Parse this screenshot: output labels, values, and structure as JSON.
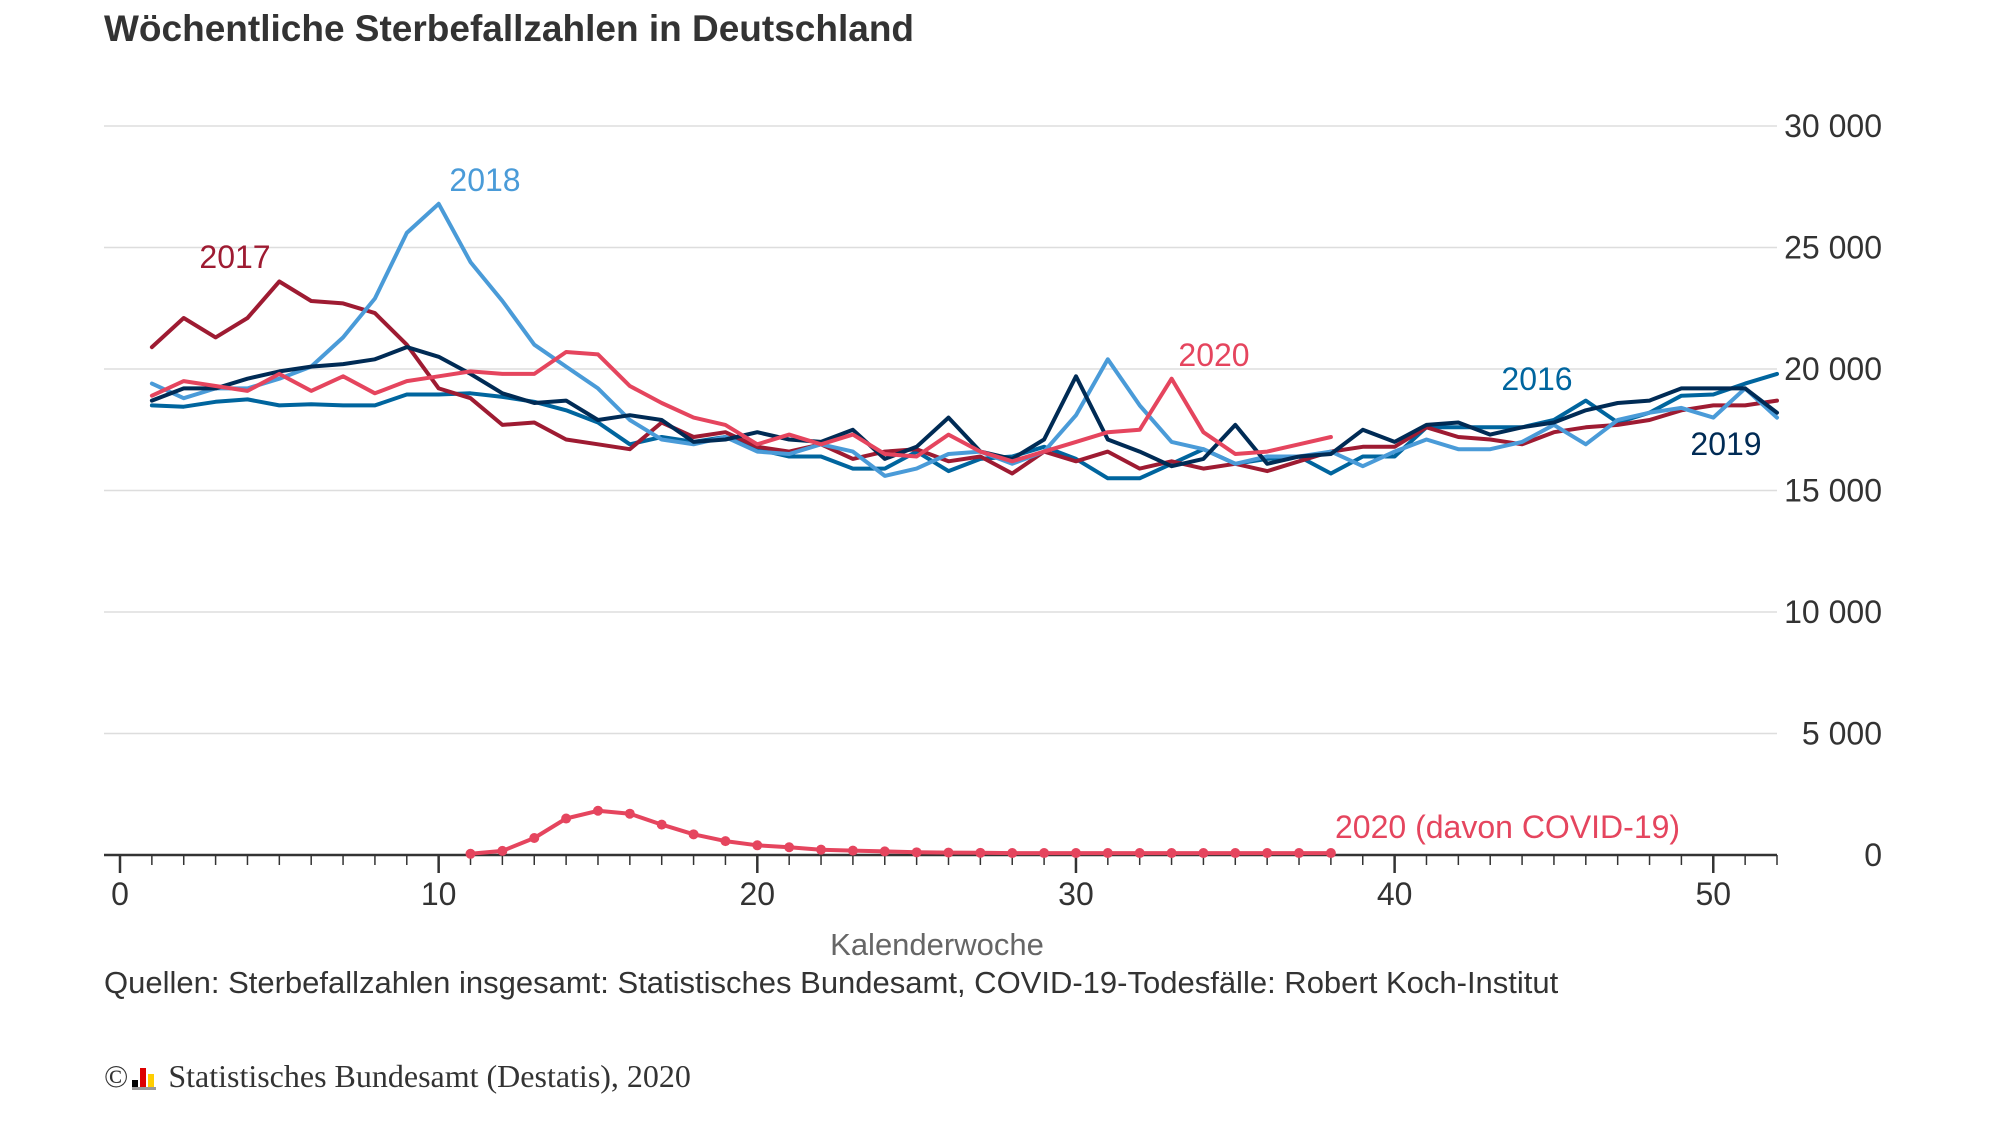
{
  "header": {
    "title": "Wöchentliche Sterbefallzahlen in Deutschland"
  },
  "footer": {
    "source": "Quellen: Sterbefallzahlen insgesamt: Statistisches Bundesamt, COVID-19-Todesfälle: Robert Koch-Institut",
    "copyright_symbol": "©",
    "copyright_text": "Statistisches Bundesamt (Destatis), 2020"
  },
  "chart_data": {
    "type": "line",
    "title": "Wöchentliche Sterbefallzahlen in Deutschland",
    "xlabel": "Kalenderwoche",
    "ylabel": "",
    "xlim": [
      0,
      52
    ],
    "ylim": [
      0,
      30000
    ],
    "x_ticks": [
      0,
      10,
      20,
      30,
      40,
      50
    ],
    "x_tick_labels": [
      "0",
      "10",
      "20",
      "30",
      "40",
      "50"
    ],
    "y_ticks": [
      0,
      5000,
      10000,
      15000,
      20000,
      25000,
      30000
    ],
    "y_tick_labels": [
      "0",
      "5 000",
      "10 000",
      "15 000",
      "20 000",
      "25 000",
      "30 000"
    ],
    "y_axis_side": "right",
    "grid": "horizontal",
    "series": [
      {
        "name": "2016",
        "color": "#00659E",
        "x": [
          1,
          2,
          3,
          4,
          5,
          6,
          7,
          8,
          9,
          10,
          11,
          12,
          13,
          14,
          15,
          16,
          17,
          18,
          19,
          20,
          21,
          22,
          23,
          24,
          25,
          26,
          27,
          28,
          29,
          30,
          31,
          32,
          33,
          34,
          35,
          36,
          37,
          38,
          39,
          40,
          41,
          42,
          43,
          44,
          45,
          46,
          47,
          48,
          49,
          50,
          51,
          52
        ],
        "values": [
          18500,
          18450,
          18650,
          18750,
          18500,
          18550,
          18500,
          18500,
          18950,
          18950,
          19000,
          18850,
          18650,
          18300,
          17800,
          16900,
          17200,
          17000,
          17200,
          16700,
          16400,
          16400,
          15900,
          15900,
          16600,
          15800,
          16300,
          16400,
          16800,
          16300,
          15500,
          15500,
          16100,
          16700,
          16100,
          16300,
          16400,
          15700,
          16400,
          16400,
          17600,
          17600,
          17600,
          17600,
          17900,
          18700,
          17800,
          18200,
          18900,
          18950,
          19400,
          19800
        ]
      },
      {
        "name": "2017",
        "color": "#9E1B32",
        "x": [
          1,
          2,
          3,
          4,
          5,
          6,
          7,
          8,
          9,
          10,
          11,
          12,
          13,
          14,
          15,
          16,
          17,
          18,
          19,
          20,
          21,
          22,
          23,
          24,
          25,
          26,
          27,
          28,
          29,
          30,
          31,
          32,
          33,
          34,
          35,
          36,
          37,
          38,
          39,
          40,
          41,
          42,
          43,
          44,
          45,
          46,
          47,
          48,
          49,
          50,
          51,
          52
        ],
        "values": [
          20900,
          22100,
          21300,
          22100,
          23600,
          22800,
          22700,
          22300,
          21000,
          19200,
          18800,
          17700,
          17800,
          17100,
          16900,
          16700,
          17800,
          17200,
          17400,
          16800,
          16600,
          16900,
          16300,
          16600,
          16700,
          16200,
          16400,
          15700,
          16600,
          16200,
          16600,
          15900,
          16200,
          15900,
          16100,
          15800,
          16200,
          16600,
          16800,
          16800,
          17600,
          17200,
          17100,
          16900,
          17400,
          17600,
          17700,
          17900,
          18300,
          18500,
          18500,
          18700
        ]
      },
      {
        "name": "2018",
        "color": "#4A9BD8",
        "x": [
          1,
          2,
          3,
          4,
          5,
          6,
          7,
          8,
          9,
          10,
          11,
          12,
          13,
          14,
          15,
          16,
          17,
          18,
          19,
          20,
          21,
          22,
          23,
          24,
          25,
          26,
          27,
          28,
          29,
          30,
          31,
          32,
          33,
          34,
          35,
          36,
          37,
          38,
          39,
          40,
          41,
          42,
          43,
          44,
          45,
          46,
          47,
          48,
          49,
          50,
          51,
          52
        ],
        "values": [
          19400,
          18800,
          19200,
          19200,
          19600,
          20100,
          21300,
          22900,
          25600,
          26800,
          24400,
          22800,
          21000,
          20100,
          19200,
          17900,
          17100,
          16900,
          17200,
          16600,
          16500,
          16900,
          16600,
          15600,
          15900,
          16500,
          16600,
          16100,
          16600,
          18100,
          20400,
          18500,
          17000,
          16700,
          16100,
          16400,
          16400,
          16600,
          16000,
          16600,
          17100,
          16700,
          16700,
          17000,
          17700,
          16900,
          17900,
          18200,
          18400,
          18000,
          19200,
          18000
        ]
      },
      {
        "name": "2019",
        "color": "#002B55",
        "x": [
          1,
          2,
          3,
          4,
          5,
          6,
          7,
          8,
          9,
          10,
          11,
          12,
          13,
          14,
          15,
          16,
          17,
          18,
          19,
          20,
          21,
          22,
          23,
          24,
          25,
          26,
          27,
          28,
          29,
          30,
          31,
          32,
          33,
          34,
          35,
          36,
          37,
          38,
          39,
          40,
          41,
          42,
          43,
          44,
          45,
          46,
          47,
          48,
          49,
          50,
          51,
          52
        ],
        "values": [
          18700,
          19200,
          19200,
          19600,
          19900,
          20100,
          20200,
          20400,
          20900,
          20500,
          19800,
          19000,
          18600,
          18700,
          17900,
          18100,
          17900,
          17000,
          17100,
          17400,
          17100,
          17000,
          17500,
          16300,
          16800,
          18000,
          16600,
          16300,
          17100,
          19700,
          17100,
          16600,
          16000,
          16300,
          17700,
          16100,
          16400,
          16500,
          17500,
          17000,
          17700,
          17800,
          17300,
          17600,
          17800,
          18300,
          18600,
          18700,
          19200,
          19200,
          19200,
          18200
        ]
      },
      {
        "name": "2020",
        "color": "#E5455E",
        "x": [
          1,
          2,
          3,
          4,
          5,
          6,
          7,
          8,
          9,
          10,
          11,
          12,
          13,
          14,
          15,
          16,
          17,
          18,
          19,
          20,
          21,
          22,
          23,
          24,
          25,
          26,
          27,
          28,
          29,
          30,
          31,
          32,
          33,
          34,
          35,
          36,
          37,
          38
        ],
        "values": [
          18900,
          19500,
          19300,
          19100,
          19800,
          19100,
          19700,
          19000,
          19500,
          19700,
          19900,
          19800,
          19800,
          20700,
          20600,
          19300,
          18600,
          18000,
          17700,
          16900,
          17300,
          16900,
          17300,
          16500,
          16400,
          17300,
          16600,
          16200,
          16600,
          17000,
          17400,
          17500,
          19600,
          17400,
          16500,
          16600,
          16900,
          17200
        ]
      },
      {
        "name": "2020 (davon COVID-19)",
        "color": "#E5455E",
        "markers": true,
        "x": [
          11,
          12,
          13,
          14,
          15,
          16,
          17,
          18,
          19,
          20,
          21,
          22,
          23,
          24,
          25,
          26,
          27,
          28,
          29,
          30,
          31,
          32,
          33,
          34,
          35,
          36,
          37,
          38
        ],
        "values": [
          50,
          170,
          700,
          1500,
          1820,
          1700,
          1250,
          850,
          570,
          400,
          320,
          220,
          180,
          150,
          110,
          100,
          90,
          80,
          80,
          80,
          80,
          80,
          80,
          80,
          80,
          80,
          80,
          80
        ]
      }
    ],
    "annotations": [
      {
        "text": "2016",
        "series": "2016"
      },
      {
        "text": "2017",
        "series": "2017"
      },
      {
        "text": "2018",
        "series": "2018"
      },
      {
        "text": "2019",
        "series": "2019"
      },
      {
        "text": "2020",
        "series": "2020"
      },
      {
        "text": "2020 (davon COVID-19)",
        "series": "2020 (davon COVID-19)"
      }
    ]
  }
}
